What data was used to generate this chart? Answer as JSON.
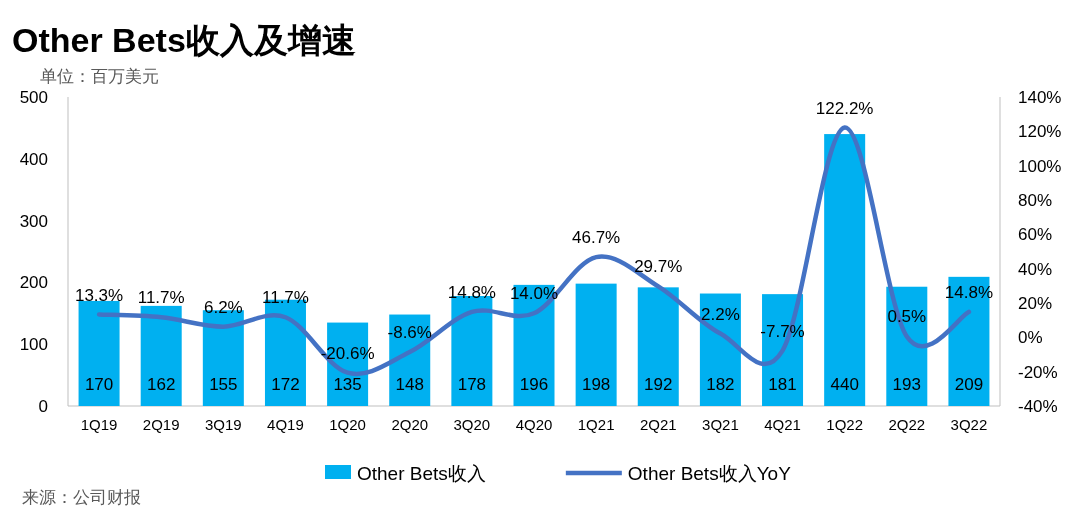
{
  "chart_data": {
    "type": "bar",
    "title": "Other Bets收入及增速",
    "subtitle": "单位：百万美元",
    "categories": [
      "1Q19",
      "2Q19",
      "3Q19",
      "4Q19",
      "1Q20",
      "2Q20",
      "3Q20",
      "4Q20",
      "1Q21",
      "2Q21",
      "3Q21",
      "4Q21",
      "1Q22",
      "2Q22",
      "3Q22"
    ],
    "series": [
      {
        "name": "Other Bets收入",
        "color": "#00b0f0",
        "values": [
          170,
          162,
          155,
          172,
          135,
          148,
          178,
          196,
          198,
          192,
          182,
          181,
          440,
          193,
          209
        ],
        "value_labels": [
          "170",
          "162",
          "155",
          "172",
          "135",
          "148",
          "178",
          "196",
          "198",
          "192",
          "182",
          "181",
          "440",
          "193",
          "209"
        ]
      },
      {
        "name": "Other Bets收入YoY",
        "type": "line",
        "axis": "y2",
        "color": "#4472c4",
        "values": [
          13.3,
          11.7,
          6.2,
          11.7,
          -20.6,
          -8.6,
          14.8,
          14.0,
          46.7,
          29.7,
          2.2,
          -7.7,
          122.2,
          0.5,
          14.8
        ],
        "value_labels": [
          "13.3%",
          "11.7%",
          "6.2%",
          "11.7%",
          "-20.6%",
          "-8.6%",
          "14.8%",
          "14.0%",
          "46.7%",
          "29.7%",
          "2.2%",
          "-7.7%",
          "122.2%",
          "0.5%",
          "14.8%"
        ]
      }
    ],
    "ylim": [
      0,
      500
    ],
    "yticks": [
      0,
      100,
      200,
      300,
      400,
      500
    ],
    "y2lim": [
      -40,
      140
    ],
    "y2ticks": [
      {
        "value": -40,
        "label": "-40%"
      },
      {
        "value": -20,
        "label": "-20%"
      },
      {
        "value": 0,
        "label": "0%"
      },
      {
        "value": 20,
        "label": "20%"
      },
      {
        "value": 40,
        "label": "40%"
      },
      {
        "value": 60,
        "label": "60%"
      },
      {
        "value": 80,
        "label": "80%"
      },
      {
        "value": 100,
        "label": "100%"
      },
      {
        "value": 120,
        "label": "120%"
      },
      {
        "value": 140,
        "label": "140%"
      }
    ],
    "legend": "bottom",
    "grid": false,
    "annotations": [
      "来源：公司财报"
    ]
  }
}
